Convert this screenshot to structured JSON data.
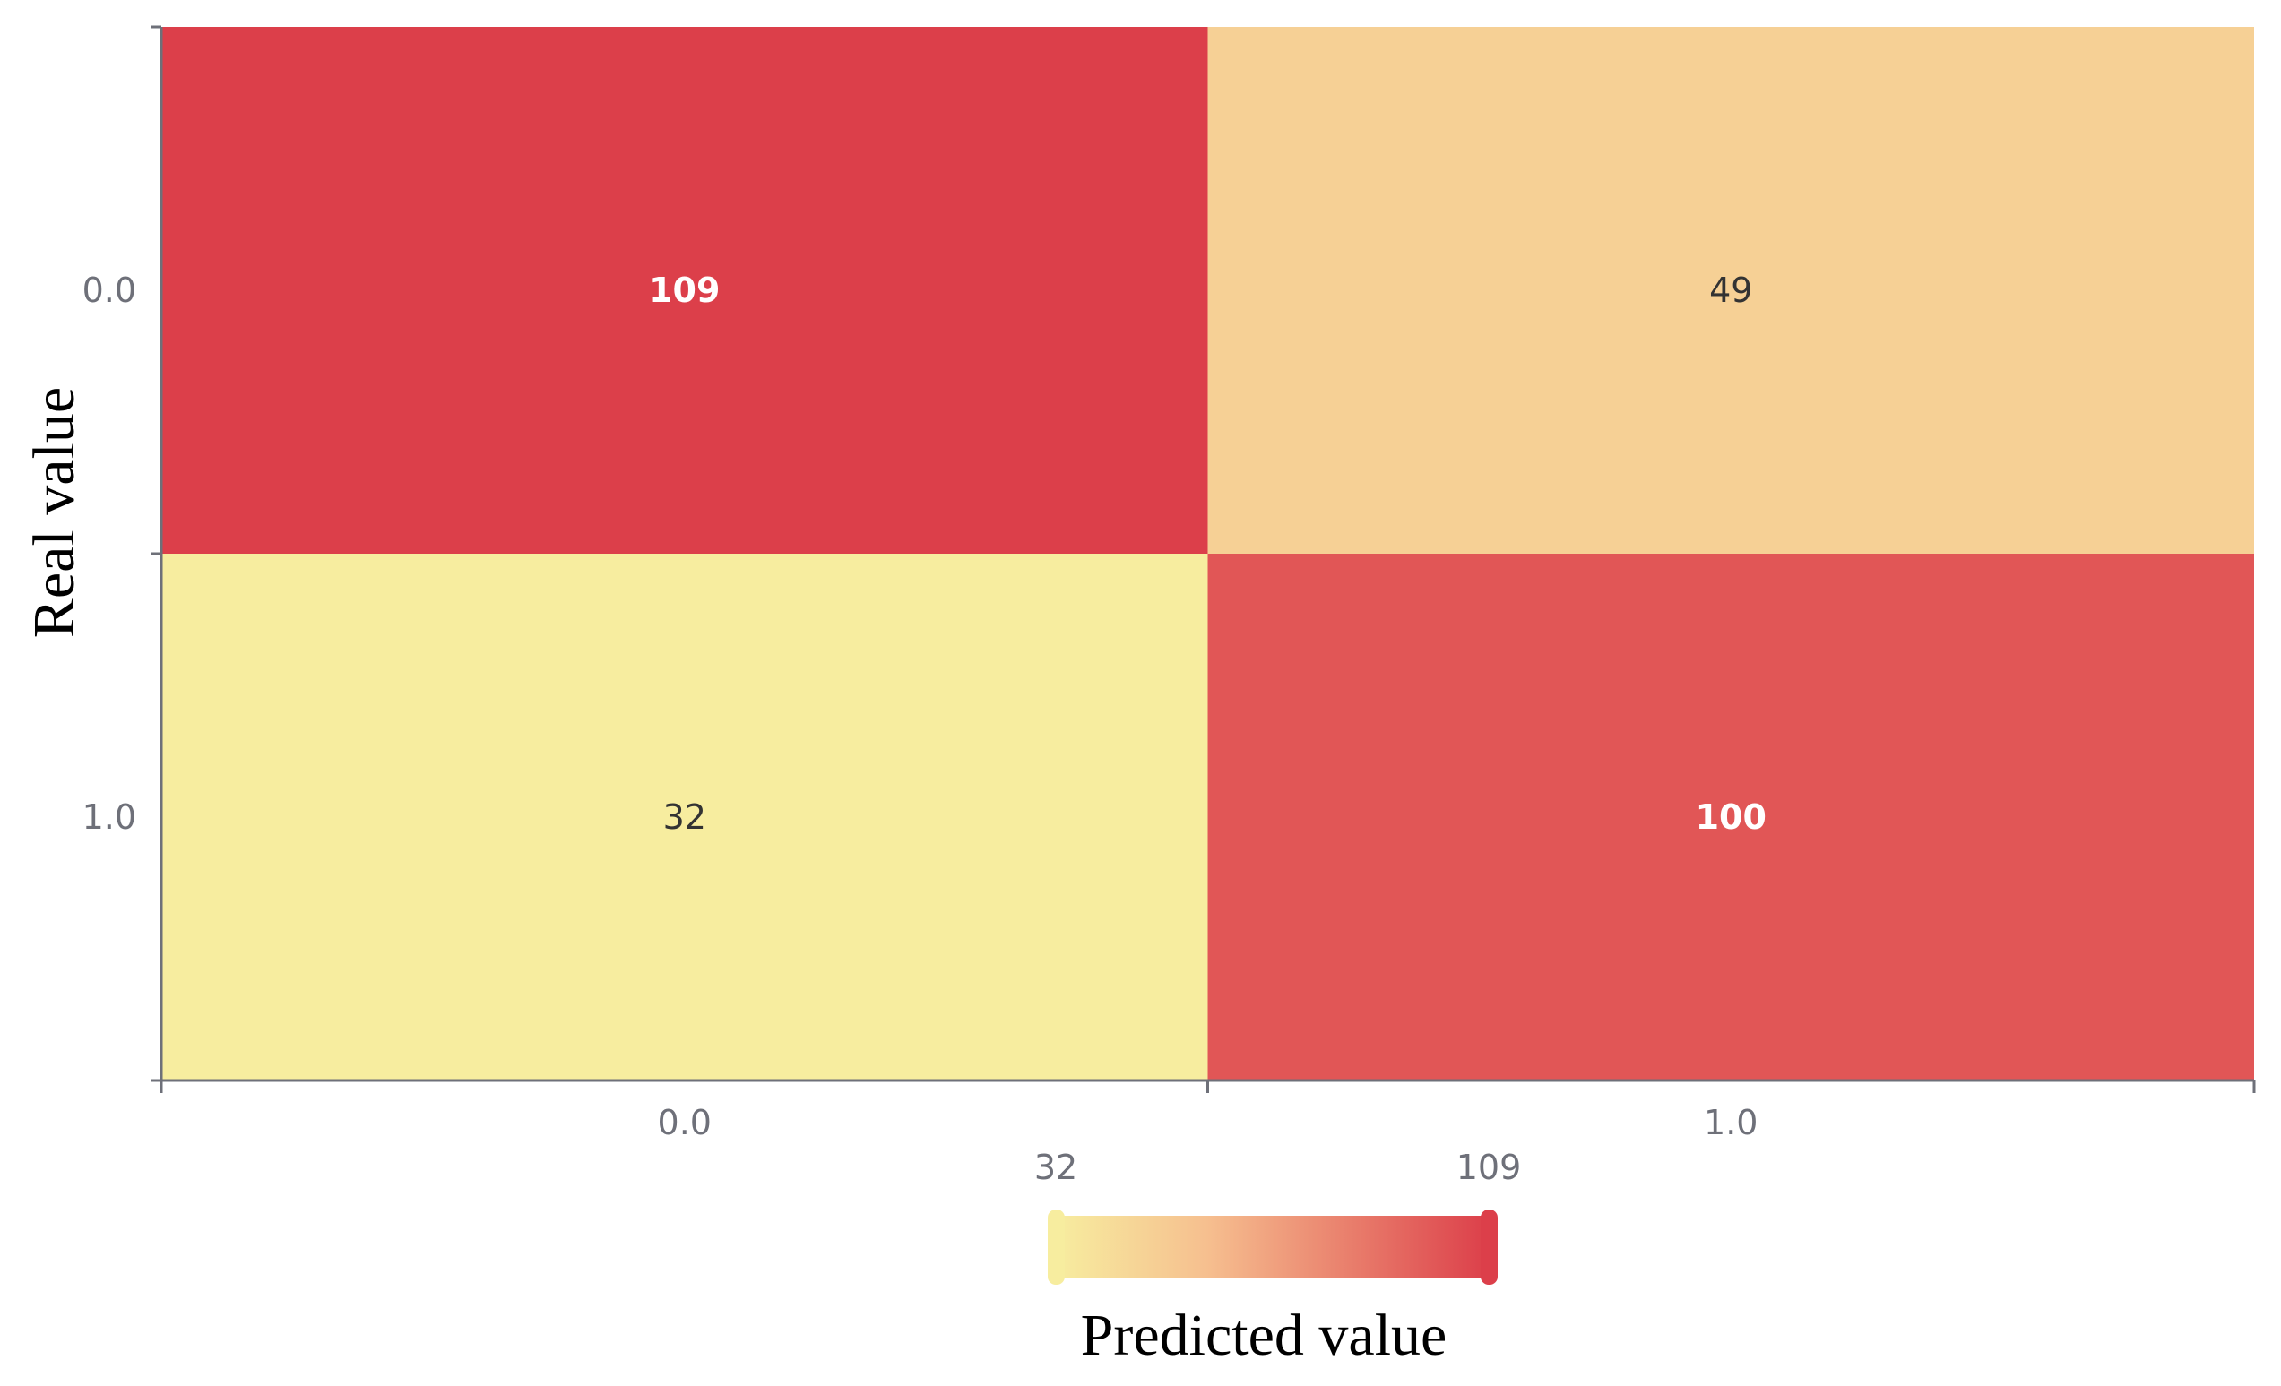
{
  "chart_data": {
    "type": "heatmap",
    "x_categories": [
      "0.0",
      "1.0"
    ],
    "y_categories": [
      "0.0",
      "1.0"
    ],
    "values": [
      [
        109,
        49
      ],
      [
        32,
        100
      ]
    ],
    "ylabel": "Real value",
    "visual_map": {
      "min": 32,
      "max": 109,
      "min_label": "32",
      "max_label": "109",
      "label": "Predicted value",
      "colors": [
        "#f7ed9f",
        "#f6bf8f",
        "#dc3f4a"
      ]
    },
    "grid": false
  }
}
